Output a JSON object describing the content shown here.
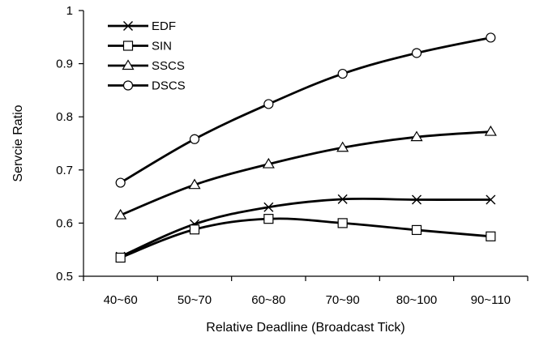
{
  "chart_data": {
    "type": "line",
    "title": "",
    "xlabel": "Relative Deadline (Broadcast Tick)",
    "ylabel": "Servcie Ratio",
    "categories": [
      "40~60",
      "50~70",
      "60~80",
      "70~90",
      "80~100",
      "90~110"
    ],
    "ylim": [
      0.5,
      1
    ],
    "yticks": [
      "0.5",
      "0.6",
      "0.7",
      "0.8",
      "0.9",
      "1"
    ],
    "grid": false,
    "legend_position": "top-left",
    "series": [
      {
        "name": "EDF",
        "marker": "x",
        "values": [
          0.537,
          0.598,
          0.63,
          0.645,
          0.644,
          0.644
        ]
      },
      {
        "name": "SIN",
        "marker": "square",
        "values": [
          0.535,
          0.588,
          0.608,
          0.6,
          0.587,
          0.575
        ]
      },
      {
        "name": "SSCS",
        "marker": "triangle",
        "values": [
          0.615,
          0.672,
          0.711,
          0.742,
          0.762,
          0.772
        ]
      },
      {
        "name": "DSCS",
        "marker": "circle",
        "values": [
          0.676,
          0.758,
          0.824,
          0.881,
          0.92,
          0.949
        ]
      }
    ]
  }
}
